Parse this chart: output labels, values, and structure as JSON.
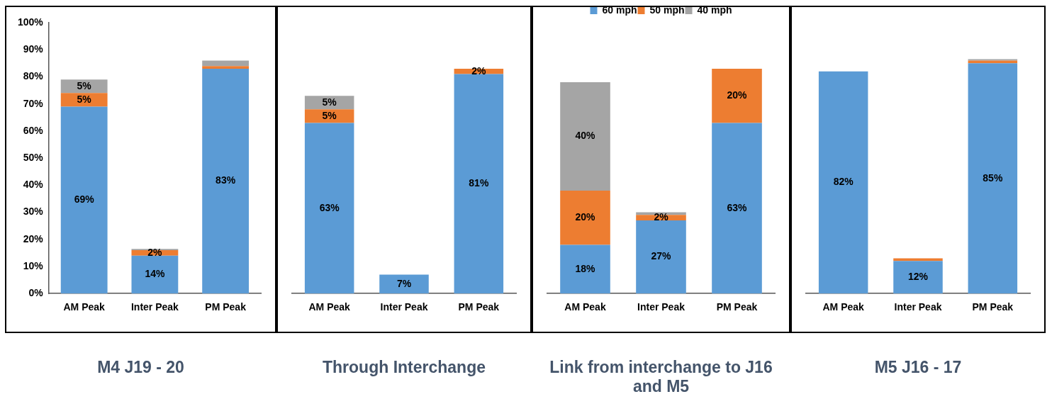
{
  "chart_data": [
    {
      "type": "bar",
      "title": "M4 J19 - 20",
      "stacked": true,
      "categories": [
        "AM Peak",
        "Inter Peak",
        "PM Peak"
      ],
      "ylim": [
        0,
        100
      ],
      "yticks": [
        {
          "value": 0,
          "label": "0%"
        },
        {
          "value": 10,
          "label": "10%"
        },
        {
          "value": 20,
          "label": "20%"
        },
        {
          "value": 30,
          "label": "30%"
        },
        {
          "value": 40,
          "label": "40%"
        },
        {
          "value": 50,
          "label": "50%"
        },
        {
          "value": 60,
          "label": "60%"
        },
        {
          "value": 70,
          "label": "70%"
        },
        {
          "value": 80,
          "label": "80%"
        },
        {
          "value": 90,
          "label": "90%"
        },
        {
          "value": 100,
          "label": "100%"
        }
      ],
      "series": [
        {
          "color": "#5b9bd5",
          "values": [
            69,
            14,
            83
          ],
          "value_labels": [
            "69%",
            "14%",
            "83%"
          ]
        },
        {
          "color": "#ed7d31",
          "values": [
            5,
            2,
            1
          ],
          "value_labels": [
            "5%",
            "2%",
            null
          ]
        },
        {
          "color": "#a5a5a5",
          "values": [
            5,
            0.5,
            2
          ],
          "value_labels": [
            "5%",
            null,
            null
          ]
        }
      ]
    },
    {
      "type": "bar",
      "title": "Through Interchange",
      "stacked": true,
      "categories": [
        "AM Peak",
        "Inter Peak",
        "PM Peak"
      ],
      "ylim": [
        0,
        100
      ],
      "tick_labels": "x",
      "series": [
        {
          "color": "#5b9bd5",
          "values": [
            63,
            7,
            81
          ],
          "value_labels": [
            "63%",
            "7%",
            "81%"
          ]
        },
        {
          "color": "#ed7d31",
          "values": [
            5,
            0,
            2
          ],
          "value_labels": [
            "5%",
            null,
            "2%"
          ]
        },
        {
          "color": "#a5a5a5",
          "values": [
            5,
            0,
            0
          ],
          "value_labels": [
            "5%",
            null,
            null
          ]
        }
      ]
    },
    {
      "type": "bar",
      "title": "Link from interchange to J16 and M5",
      "stacked": true,
      "categories": [
        "AM Peak",
        "Inter Peak",
        "PM Peak"
      ],
      "ylim": [
        0,
        100
      ],
      "tick_labels": "x",
      "legend": "top",
      "series": [
        {
          "name": "60 mph",
          "color": "#5b9bd5",
          "values": [
            18,
            27,
            63
          ],
          "value_labels": [
            "18%",
            "27%",
            "63%"
          ]
        },
        {
          "name": "50 mph",
          "color": "#ed7d31",
          "values": [
            20,
            2,
            20
          ],
          "value_labels": [
            "20%",
            "2%",
            "20%"
          ]
        },
        {
          "name": "40 mph",
          "color": "#a5a5a5",
          "values": [
            40,
            1,
            0
          ],
          "value_labels": [
            "40%",
            null,
            null
          ]
        }
      ]
    },
    {
      "type": "bar",
      "title": "M5 J16 - 17",
      "stacked": true,
      "categories": [
        "AM Peak",
        "Inter Peak",
        "PM Peak"
      ],
      "ylim": [
        0,
        100
      ],
      "tick_labels": "x",
      "series": [
        {
          "color": "#5b9bd5",
          "values": [
            82,
            12,
            85
          ],
          "value_labels": [
            "82%",
            "12%",
            "85%"
          ]
        },
        {
          "color": "#ed7d31",
          "values": [
            0,
            1,
            1
          ],
          "value_labels": [
            null,
            null,
            null
          ]
        },
        {
          "color": "#a5a5a5",
          "values": [
            0,
            0,
            0.5
          ],
          "value_labels": [
            null,
            null,
            null
          ]
        }
      ]
    }
  ]
}
